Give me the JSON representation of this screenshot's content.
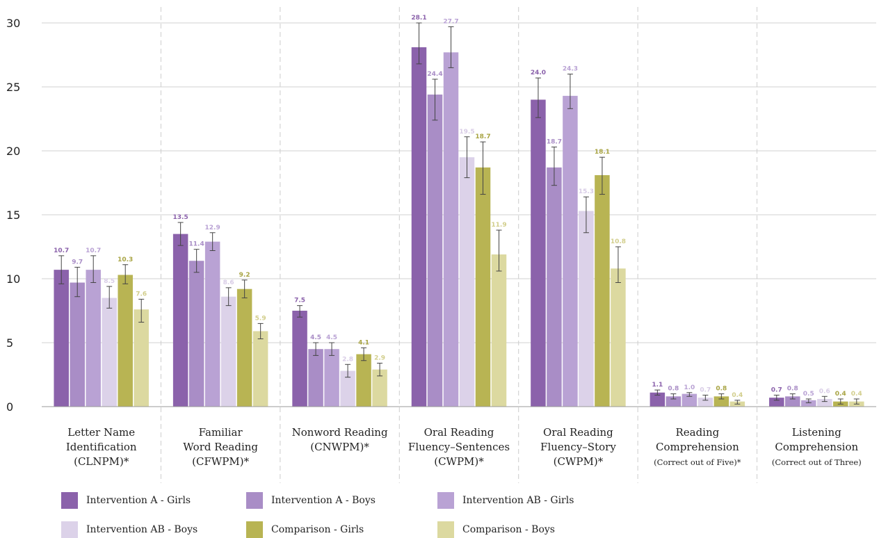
{
  "chart_data": {
    "type": "bar",
    "title": "",
    "xlabel": "",
    "ylabel": "",
    "ylim": [
      0,
      30
    ],
    "yticks": [
      0,
      5,
      10,
      15,
      20,
      25,
      30
    ],
    "grid": "horizontal",
    "legend_position": "bottom",
    "categories": [
      [
        "Letter Name",
        "Identification",
        "(CLNPM)*"
      ],
      [
        "Familiar",
        "Word Reading",
        "(CFWPM)*"
      ],
      [
        "Nonword Reading",
        "(CNWPM)*"
      ],
      [
        "Oral Reading",
        "Fluency–Sentences",
        "(CWPM)*"
      ],
      [
        "Oral Reading",
        "Fluency–Story",
        "(CWPM)*"
      ],
      [
        "Reading",
        "Comprehension",
        "(Correct out of Five)*"
      ],
      [
        "Listening",
        "Comprehension",
        "(Correct out of Three)"
      ]
    ],
    "series": [
      {
        "name": "Intervention A - Girls",
        "color": "#8b62ab",
        "label_color": "#8b62ab",
        "values": [
          10.7,
          13.5,
          7.5,
          28.1,
          24.0,
          1.1,
          0.7
        ],
        "labels": [
          "10.7",
          "13.5",
          "7.5",
          "28.1",
          "24.0",
          "1.1",
          "0.7"
        ],
        "err_low": [
          9.6,
          12.6,
          7.0,
          26.8,
          22.6,
          0.9,
          0.5
        ],
        "err_high": [
          11.8,
          14.4,
          7.9,
          30.0,
          25.7,
          1.3,
          0.9
        ]
      },
      {
        "name": "Intervention A - Boys",
        "color": "#a98dc6",
        "label_color": "#a98dc6",
        "values": [
          9.7,
          11.4,
          4.5,
          24.4,
          18.7,
          0.8,
          0.8
        ],
        "labels": [
          "9.7",
          "11.4",
          "4.5",
          "24.4",
          "18.7",
          "0.8",
          "0.8"
        ],
        "err_low": [
          8.6,
          10.5,
          4.0,
          22.4,
          17.3,
          0.6,
          0.6
        ],
        "err_high": [
          10.9,
          12.3,
          5.0,
          25.6,
          20.3,
          1.0,
          1.0
        ]
      },
      {
        "name": "Intervention AB - Girls",
        "color": "#b9a2d4",
        "label_color": "#b9a2d4",
        "values": [
          10.7,
          12.9,
          4.5,
          27.7,
          24.3,
          1.0,
          0.5
        ],
        "labels": [
          "10.7",
          "12.9",
          "4.5",
          "27.7",
          "24.3",
          "1.0",
          "0.5"
        ],
        "err_low": [
          9.7,
          12.2,
          4.0,
          26.5,
          23.3,
          0.8,
          0.3
        ],
        "err_high": [
          11.8,
          13.6,
          5.0,
          29.7,
          26.0,
          1.1,
          0.6
        ]
      },
      {
        "name": "Intervention AB - Boys",
        "color": "#dcd2e9",
        "label_color": "#d8cce6",
        "values": [
          8.5,
          8.6,
          2.8,
          19.5,
          15.3,
          0.7,
          0.6
        ],
        "labels": [
          "8.5",
          "8.6",
          "2.8",
          "19.5",
          "15.3",
          "0.7",
          "0.6"
        ],
        "err_low": [
          7.7,
          7.9,
          2.3,
          17.9,
          13.6,
          0.5,
          0.4
        ],
        "err_high": [
          9.4,
          9.3,
          3.3,
          21.1,
          16.4,
          0.9,
          0.8
        ]
      },
      {
        "name": "Comparison - Girls",
        "color": "#b8b453",
        "label_color": "#a8a443",
        "values": [
          10.3,
          9.2,
          4.1,
          18.7,
          18.1,
          0.8,
          0.4
        ],
        "labels": [
          "10.3",
          "9.2",
          "4.1",
          "18.7",
          "18.1",
          "0.8",
          "0.4"
        ],
        "err_low": [
          9.6,
          8.5,
          3.6,
          16.6,
          16.6,
          0.6,
          0.2
        ],
        "err_high": [
          11.1,
          9.9,
          4.6,
          20.7,
          19.5,
          1.0,
          0.6
        ]
      },
      {
        "name": "Comparison - Boys",
        "color": "#dcd9a0",
        "label_color": "#d2ce8c",
        "values": [
          7.6,
          5.9,
          2.9,
          11.9,
          10.8,
          0.4,
          0.4
        ],
        "labels": [
          "7.6",
          "5.9",
          "2.9",
          "11.9",
          "10.8",
          "0.4",
          "0.4"
        ],
        "err_low": [
          6.6,
          5.3,
          2.4,
          10.6,
          9.7,
          0.2,
          0.2
        ],
        "err_high": [
          8.4,
          6.5,
          3.4,
          13.8,
          12.5,
          0.5,
          0.6
        ]
      }
    ]
  },
  "colors": {
    "grid": "#d0d0d0",
    "divider": "#cccccc",
    "axis": "#999999",
    "error_bar": "#444444"
  }
}
